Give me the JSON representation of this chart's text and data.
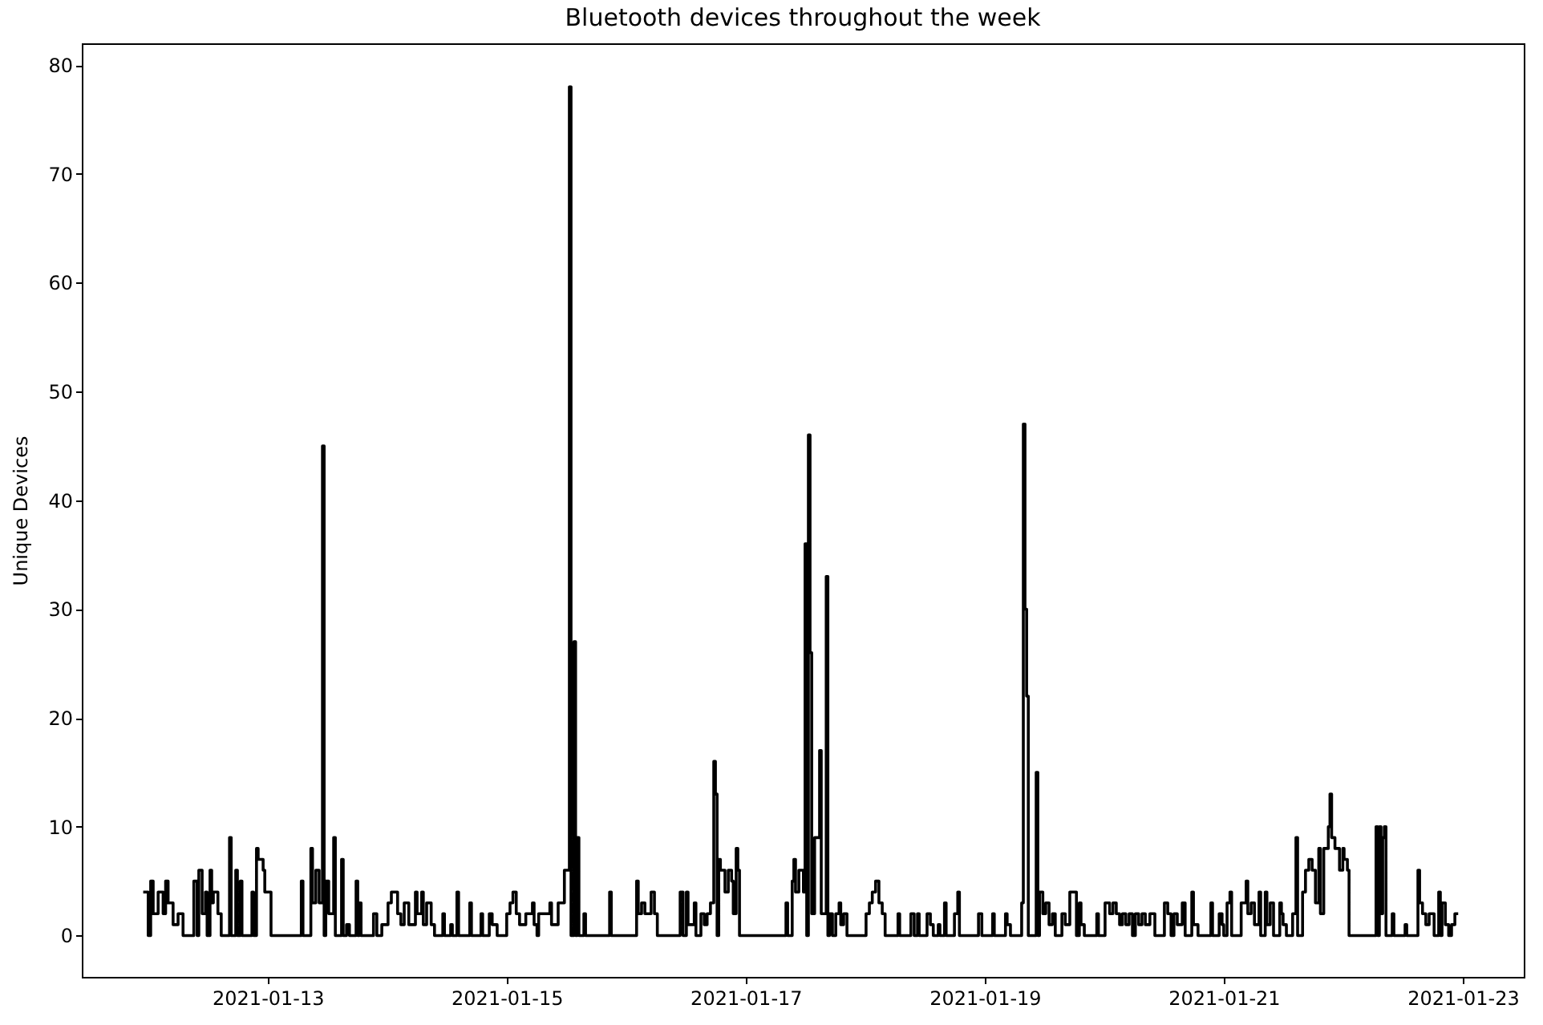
{
  "chart_data": {
    "type": "step",
    "title": "Bluetooth devices throughout the week",
    "ylabel": "Unique Devices",
    "x": [
      "2021-01-11T23:00",
      "2021-01-12T00:00",
      "2021-01-12T00:30",
      "2021-01-12T01:00",
      "2021-01-12T02:00",
      "2021-01-12T03:00",
      "2021-01-12T03:30",
      "2021-01-12T04:00",
      "2021-01-12T05:00",
      "2021-01-12T06:00",
      "2021-01-12T07:00",
      "2021-01-12T09:10",
      "2021-01-12T09:50",
      "2021-01-12T10:10",
      "2021-01-12T10:50",
      "2021-01-12T11:30",
      "2021-01-12T11:50",
      "2021-01-12T12:25",
      "2021-01-12T12:45",
      "2021-01-12T13:05",
      "2021-01-12T14:00",
      "2021-01-12T14:40",
      "2021-01-12T16:20",
      "2021-01-12T16:40",
      "2021-01-12T17:35",
      "2021-01-12T17:55",
      "2021-01-12T18:30",
      "2021-01-12T18:50",
      "2021-01-12T20:50",
      "2021-01-12T21:10",
      "2021-01-12T21:45",
      "2021-01-12T22:05",
      "2021-01-12T23:05",
      "2021-01-12T23:25",
      "2021-01-13T00:40",
      "2021-01-13T06:45",
      "2021-01-13T07:05",
      "2021-01-13T08:40",
      "2021-01-13T09:00",
      "2021-01-13T09:40",
      "2021-01-13T10:20",
      "2021-01-13T11:00",
      "2021-01-13T11:20",
      "2021-01-13T11:40",
      "2021-01-13T12:15",
      "2021-01-13T13:15",
      "2021-01-13T13:35",
      "2021-01-13T14:50",
      "2021-01-13T15:10",
      "2021-01-13T15:50",
      "2021-01-13T16:25",
      "2021-01-13T17:45",
      "2021-01-13T18:05",
      "2021-01-13T18:25",
      "2021-01-13T18:45",
      "2021-01-13T21:15",
      "2021-01-13T21:55",
      "2021-01-13T22:55",
      "2021-01-14T00:10",
      "2021-01-14T00:50",
      "2021-01-14T02:05",
      "2021-01-14T02:45",
      "2021-01-14T03:25",
      "2021-01-14T04:20",
      "2021-01-14T05:40",
      "2021-01-14T06:00",
      "2021-01-14T06:55",
      "2021-01-14T07:15",
      "2021-01-14T07:55",
      "2021-01-14T08:50",
      "2021-01-14T09:30",
      "2021-01-14T11:10",
      "2021-01-14T11:30",
      "2021-01-14T12:45",
      "2021-01-14T13:05",
      "2021-01-14T14:00",
      "2021-01-14T14:20",
      "2021-01-14T16:35",
      "2021-01-14T16:55",
      "2021-01-14T18:50",
      "2021-01-14T19:10",
      "2021-01-14T20:30",
      "2021-01-14T21:05",
      "2021-01-14T22:05",
      "2021-01-15T00:00",
      "2021-01-15T00:40",
      "2021-01-15T01:15",
      "2021-01-15T01:55",
      "2021-01-15T02:35",
      "2021-01-15T03:50",
      "2021-01-15T05:10",
      "2021-01-15T05:30",
      "2021-01-15T06:05",
      "2021-01-15T06:25",
      "2021-01-15T08:40",
      "2021-01-15T09:00",
      "2021-01-15T10:20",
      "2021-01-15T11:35",
      "2021-01-15T12:35",
      "2021-01-15T12:55",
      "2021-01-15T13:30",
      "2021-01-15T13:50",
      "2021-01-15T14:10",
      "2021-01-15T14:30",
      "2021-01-15T15:30",
      "2021-01-15T15:50",
      "2021-01-15T20:40",
      "2021-01-15T21:00",
      "2021-01-16T02:05",
      "2021-01-16T02:25",
      "2021-01-16T03:05",
      "2021-01-16T03:45",
      "2021-01-16T05:00",
      "2021-01-16T05:40",
      "2021-01-16T06:15",
      "2021-01-16T10:50",
      "2021-01-16T11:25",
      "2021-01-16T12:05",
      "2021-01-16T12:25",
      "2021-01-16T13:40",
      "2021-01-16T14:00",
      "2021-01-16T15:00",
      "2021-01-16T15:40",
      "2021-01-16T16:15",
      "2021-01-16T16:55",
      "2021-01-16T17:35",
      "2021-01-16T17:55",
      "2021-01-16T18:15",
      "2021-01-16T18:35",
      "2021-01-16T18:55",
      "2021-01-16T19:50",
      "2021-01-16T20:30",
      "2021-01-16T21:10",
      "2021-01-16T21:30",
      "2021-01-16T22:05",
      "2021-01-16T22:25",
      "2021-01-16T22:45",
      "2021-01-17T08:05",
      "2021-01-17T08:25",
      "2021-01-17T09:20",
      "2021-01-17T09:40",
      "2021-01-17T10:00",
      "2021-01-17T10:40",
      "2021-01-17T11:35",
      "2021-01-17T11:55",
      "2021-01-17T12:15",
      "2021-01-17T12:35",
      "2021-01-17T12:55",
      "2021-01-17T13:15",
      "2021-01-17T13:50",
      "2021-01-17T14:50",
      "2021-01-17T15:10",
      "2021-01-17T16:10",
      "2021-01-17T16:30",
      "2021-01-17T16:50",
      "2021-01-17T17:25",
      "2021-01-17T18:05",
      "2021-01-17T18:45",
      "2021-01-17T19:05",
      "2021-01-17T19:40",
      "2021-01-17T20:20",
      "2021-01-18T00:10",
      "2021-01-18T00:50",
      "2021-01-18T01:25",
      "2021-01-18T02:05",
      "2021-01-18T02:45",
      "2021-01-18T03:25",
      "2021-01-18T04:00",
      "2021-01-18T06:35",
      "2021-01-18T06:55",
      "2021-01-18T09:10",
      "2021-01-18T09:50",
      "2021-01-18T10:30",
      "2021-01-18T10:50",
      "2021-01-18T12:25",
      "2021-01-18T13:05",
      "2021-01-18T13:40",
      "2021-01-18T14:40",
      "2021-01-18T15:00",
      "2021-01-18T15:55",
      "2021-01-18T16:15",
      "2021-01-18T17:55",
      "2021-01-18T18:35",
      "2021-01-18T18:55",
      "2021-01-18T22:45",
      "2021-01-18T23:25",
      "2021-01-19T01:35",
      "2021-01-19T01:55",
      "2021-01-19T04:10",
      "2021-01-19T04:30",
      "2021-01-19T05:10",
      "2021-01-19T07:25",
      "2021-01-19T07:45",
      "2021-01-19T08:05",
      "2021-01-19T08:25",
      "2021-01-19T08:45",
      "2021-01-19T10:20",
      "2021-01-19T10:40",
      "2021-01-19T11:00",
      "2021-01-19T11:40",
      "2021-01-19T12:15",
      "2021-01-19T12:55",
      "2021-01-19T13:35",
      "2021-01-19T14:10",
      "2021-01-19T15:30",
      "2021-01-19T16:10",
      "2021-01-19T17:05",
      "2021-01-19T18:25",
      "2021-01-19T19:00",
      "2021-01-19T19:20",
      "2021-01-19T20:00",
      "2021-01-19T22:30",
      "2021-01-19T22:50",
      "2021-01-20T00:10",
      "2021-01-20T01:05",
      "2021-01-20T01:45",
      "2021-01-20T02:25",
      "2021-01-20T03:05",
      "2021-01-20T03:40",
      "2021-01-20T04:20",
      "2021-01-20T05:00",
      "2021-01-20T05:40",
      "2021-01-20T06:15",
      "2021-01-20T06:55",
      "2021-01-20T07:35",
      "2021-01-20T08:15",
      "2021-01-20T09:10",
      "2021-01-20T10:10",
      "2021-01-20T12:05",
      "2021-01-20T12:45",
      "2021-01-20T13:25",
      "2021-01-20T14:00",
      "2021-01-20T14:40",
      "2021-01-20T15:40",
      "2021-01-20T16:15",
      "2021-01-20T17:35",
      "2021-01-20T17:55",
      "2021-01-20T18:50",
      "2021-01-20T21:25",
      "2021-01-20T21:45",
      "2021-01-20T23:05",
      "2021-01-20T23:40",
      "2021-01-21T00:00",
      "2021-01-21T00:40",
      "2021-01-21T01:15",
      "2021-01-21T01:35",
      "2021-01-21T03:30",
      "2021-01-21T04:30",
      "2021-01-21T04:50",
      "2021-01-21T05:30",
      "2021-01-21T06:10",
      "2021-01-21T07:05",
      "2021-01-21T07:25",
      "2021-01-21T08:20",
      "2021-01-21T08:40",
      "2021-01-21T09:20",
      "2021-01-21T10:00",
      "2021-01-21T11:15",
      "2021-01-21T11:35",
      "2021-01-21T11:55",
      "2021-01-21T12:35",
      "2021-01-21T13:50",
      "2021-01-21T14:30",
      "2021-01-21T14:50",
      "2021-01-21T15:50",
      "2021-01-21T16:25",
      "2021-01-21T17:05",
      "2021-01-21T17:45",
      "2021-01-21T18:25",
      "2021-01-21T19:05",
      "2021-01-21T19:25",
      "2021-01-21T20:05",
      "2021-01-21T21:00",
      "2021-01-21T21:20",
      "2021-01-21T21:40",
      "2021-01-21T22:20",
      "2021-01-21T23:15",
      "2021-01-21T23:55",
      "2021-01-22T00:10",
      "2021-01-22T00:50",
      "2021-01-22T01:10",
      "2021-01-22T06:35",
      "2021-01-22T06:55",
      "2021-01-22T07:15",
      "2021-01-22T07:35",
      "2021-01-22T07:55",
      "2021-01-22T08:15",
      "2021-01-22T08:35",
      "2021-01-22T09:50",
      "2021-01-22T10:10",
      "2021-01-22T12:25",
      "2021-01-22T12:45",
      "2021-01-22T15:00",
      "2021-01-22T15:20",
      "2021-01-22T15:55",
      "2021-01-22T16:35",
      "2021-01-22T17:15",
      "2021-01-22T18:15",
      "2021-01-22T19:10",
      "2021-01-22T19:30",
      "2021-01-22T19:50",
      "2021-01-22T20:30",
      "2021-01-22T21:10",
      "2021-01-22T21:45",
      "2021-01-22T22:25",
      "2021-01-22T23:05"
    ],
    "values": [
      4,
      0,
      5,
      2,
      4,
      2,
      5,
      3,
      1,
      2,
      0,
      5,
      0,
      6,
      2,
      4,
      0,
      6,
      3,
      4,
      2,
      0,
      9,
      0,
      6,
      0,
      5,
      0,
      4,
      0,
      8,
      7,
      6,
      4,
      0,
      5,
      0,
      8,
      3,
      6,
      3,
      45,
      0,
      5,
      2,
      9,
      0,
      7,
      0,
      1,
      0,
      5,
      0,
      3,
      0,
      2,
      0,
      1,
      3,
      4,
      2,
      1,
      3,
      1,
      4,
      2,
      4,
      1,
      3,
      1,
      0,
      2,
      0,
      1,
      0,
      4,
      0,
      3,
      0,
      2,
      0,
      2,
      1,
      0,
      2,
      3,
      4,
      2,
      1,
      2,
      3,
      1,
      0,
      2,
      3,
      1,
      3,
      6,
      78,
      0,
      27,
      0,
      9,
      0,
      2,
      0,
      4,
      0,
      5,
      2,
      3,
      2,
      4,
      2,
      0,
      4,
      0,
      4,
      1,
      3,
      0,
      2,
      1,
      2,
      3,
      16,
      13,
      0,
      7,
      6,
      4,
      6,
      5,
      2,
      8,
      6,
      0,
      3,
      0,
      5,
      7,
      4,
      6,
      4,
      36,
      0,
      46,
      26,
      2,
      9,
      17,
      2,
      33,
      0,
      2,
      0,
      2,
      3,
      1,
      2,
      0,
      2,
      3,
      4,
      5,
      3,
      2,
      0,
      2,
      0,
      2,
      0,
      2,
      0,
      2,
      1,
      0,
      1,
      0,
      3,
      0,
      2,
      4,
      0,
      2,
      0,
      2,
      0,
      2,
      1,
      0,
      3,
      47,
      30,
      22,
      0,
      15,
      0,
      4,
      2,
      3,
      1,
      2,
      0,
      2,
      1,
      4,
      0,
      3,
      1,
      0,
      2,
      0,
      3,
      2,
      3,
      2,
      1,
      2,
      1,
      2,
      0,
      2,
      1,
      2,
      1,
      2,
      0,
      3,
      2,
      0,
      2,
      1,
      3,
      0,
      4,
      1,
      0,
      3,
      0,
      2,
      1,
      0,
      3,
      4,
      0,
      3,
      5,
      2,
      3,
      1,
      4,
      0,
      4,
      1,
      3,
      0,
      3,
      2,
      1,
      0,
      2,
      9,
      0,
      4,
      6,
      7,
      6,
      3,
      8,
      2,
      8,
      10,
      13,
      9,
      8,
      6,
      8,
      7,
      6,
      0,
      10,
      0,
      10,
      2,
      9,
      10,
      0,
      2,
      0,
      1,
      0,
      6,
      3,
      2,
      1,
      2,
      0,
      4,
      0,
      3,
      1,
      0,
      1,
      2,
      2
    ],
    "color": "#000000",
    "line_style": "solid",
    "xlim": [
      "2021-01-11T10:40",
      "2021-01-23T12:15"
    ],
    "xticks": [
      "2021-01-13",
      "2021-01-15",
      "2021-01-17",
      "2021-01-19",
      "2021-01-21",
      "2021-01-23"
    ],
    "ylim": [
      -3.8,
      82
    ],
    "yticks": [
      0,
      10,
      20,
      30,
      40,
      50,
      60,
      70,
      80
    ],
    "grid": false,
    "legend": false
  }
}
